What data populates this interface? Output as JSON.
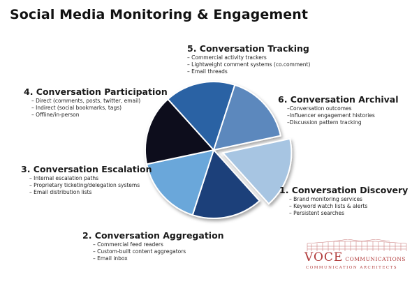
{
  "title": "Social Media Monitoring & Engagement",
  "colors": {
    "discovery": "#a7c5e2",
    "aggregation": "#1b3f7a",
    "escalation": "#6ba7da",
    "participation": "#070b1c",
    "tracking": "#2a62a4",
    "archival": "#5c88bd",
    "logo": "#b03a3a"
  },
  "stages": [
    {
      "label": "1. Conversation Discovery",
      "items": [
        "Brand monitoring services",
        "Keyword watch lists & alerts",
        "Persistent searches"
      ]
    },
    {
      "label": "2. Conversation Aggregation",
      "items": [
        "Commercial feed readers",
        "Custom-built content aggregators",
        "Email inbox"
      ]
    },
    {
      "label": "3. Conversation Escalation",
      "items": [
        "Internal escalation paths",
        "Proprietary ticketing/delegation systems",
        "Email distribution lists"
      ]
    },
    {
      "label": "4. Conversation Participation",
      "items": [
        "Direct (comments, posts, twitter, email)",
        "Indirect (social bookmarks, tags)",
        "Offline/in-person"
      ]
    },
    {
      "label": "5. Conversation Tracking",
      "items": [
        "Commercial activity trackers",
        "Lightweight comment systems (co.comment)",
        "Email threads"
      ]
    },
    {
      "label": "6. Conversation Archival",
      "items": [
        "Conversation outcomes",
        "Influencer engagement histories",
        "Discussion pattern tracking"
      ]
    }
  ],
  "logo": {
    "name": "VOCE",
    "suffix": "COMMUNICATIONS",
    "tagline": "COMMUNICATION ARCHITECTS"
  }
}
